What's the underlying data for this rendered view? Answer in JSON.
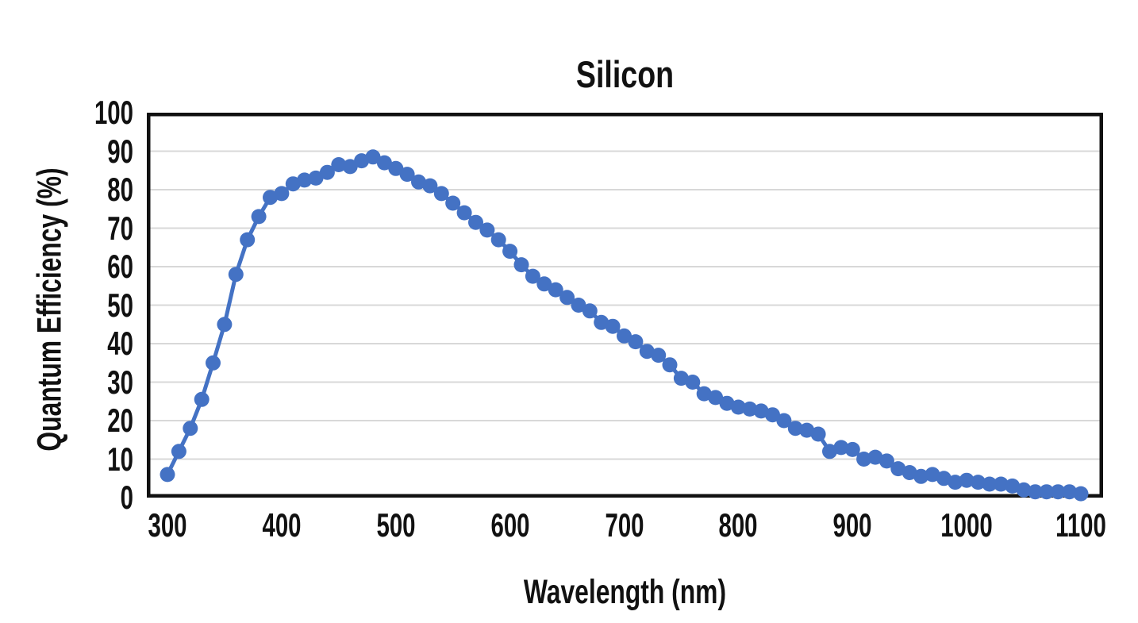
{
  "title": "Silicon",
  "colors": {
    "series_blue": "#4472C4",
    "gridline_gray": "#D8D8D8",
    "axis_black": "#111111",
    "background": "#FFFFFF"
  },
  "chart_data": {
    "type": "line",
    "style": "line-with-circle-markers",
    "title": "Silicon",
    "xlabel": "Wavelength (nm)",
    "ylabel": "Quantum Efficiency (%)",
    "xlim": [
      300,
      1100
    ],
    "ylim": [
      0,
      100
    ],
    "x_ticks": [
      300,
      400,
      500,
      600,
      700,
      800,
      900,
      1000,
      1100
    ],
    "y_ticks": [
      0,
      10,
      20,
      30,
      40,
      50,
      60,
      70,
      80,
      90,
      100
    ],
    "grid": "horizontal-only",
    "legend_position": "none",
    "series_name": "Silicon",
    "series_color": "#4472C4",
    "x": [
      300,
      310,
      320,
      330,
      340,
      350,
      360,
      370,
      380,
      390,
      400,
      410,
      420,
      430,
      440,
      450,
      460,
      470,
      480,
      490,
      500,
      510,
      520,
      530,
      540,
      550,
      560,
      570,
      580,
      590,
      600,
      610,
      620,
      630,
      640,
      650,
      660,
      670,
      680,
      690,
      700,
      710,
      720,
      730,
      740,
      750,
      760,
      770,
      780,
      790,
      800,
      810,
      820,
      830,
      840,
      850,
      860,
      870,
      880,
      890,
      900,
      910,
      920,
      930,
      940,
      950,
      960,
      970,
      980,
      990,
      1000,
      1010,
      1020,
      1030,
      1040,
      1050,
      1060,
      1070,
      1080,
      1090,
      1100
    ],
    "y": [
      6,
      12,
      18,
      25.5,
      35,
      45,
      58,
      67,
      73,
      78,
      79,
      81.5,
      82.5,
      83,
      84.5,
      86.5,
      86,
      87.5,
      88.5,
      87,
      85.5,
      84,
      82,
      81,
      79,
      76.5,
      74,
      71.5,
      69.5,
      67,
      64,
      60.5,
      57.5,
      55.5,
      54,
      52,
      50,
      48.5,
      45.5,
      44.5,
      42,
      40.5,
      38,
      37,
      34.5,
      31,
      30,
      27,
      26,
      24.5,
      23.5,
      23,
      22.5,
      21.5,
      20,
      18,
      17.5,
      16.5,
      12,
      13,
      12.5,
      10,
      10.5,
      9.5,
      7.5,
      6.5,
      5.5,
      6,
      5,
      4,
      4.5,
      4,
      3.5,
      3.5,
      3,
      2,
      1.5,
      1.5,
      1.5,
      1.5,
      1
    ]
  }
}
